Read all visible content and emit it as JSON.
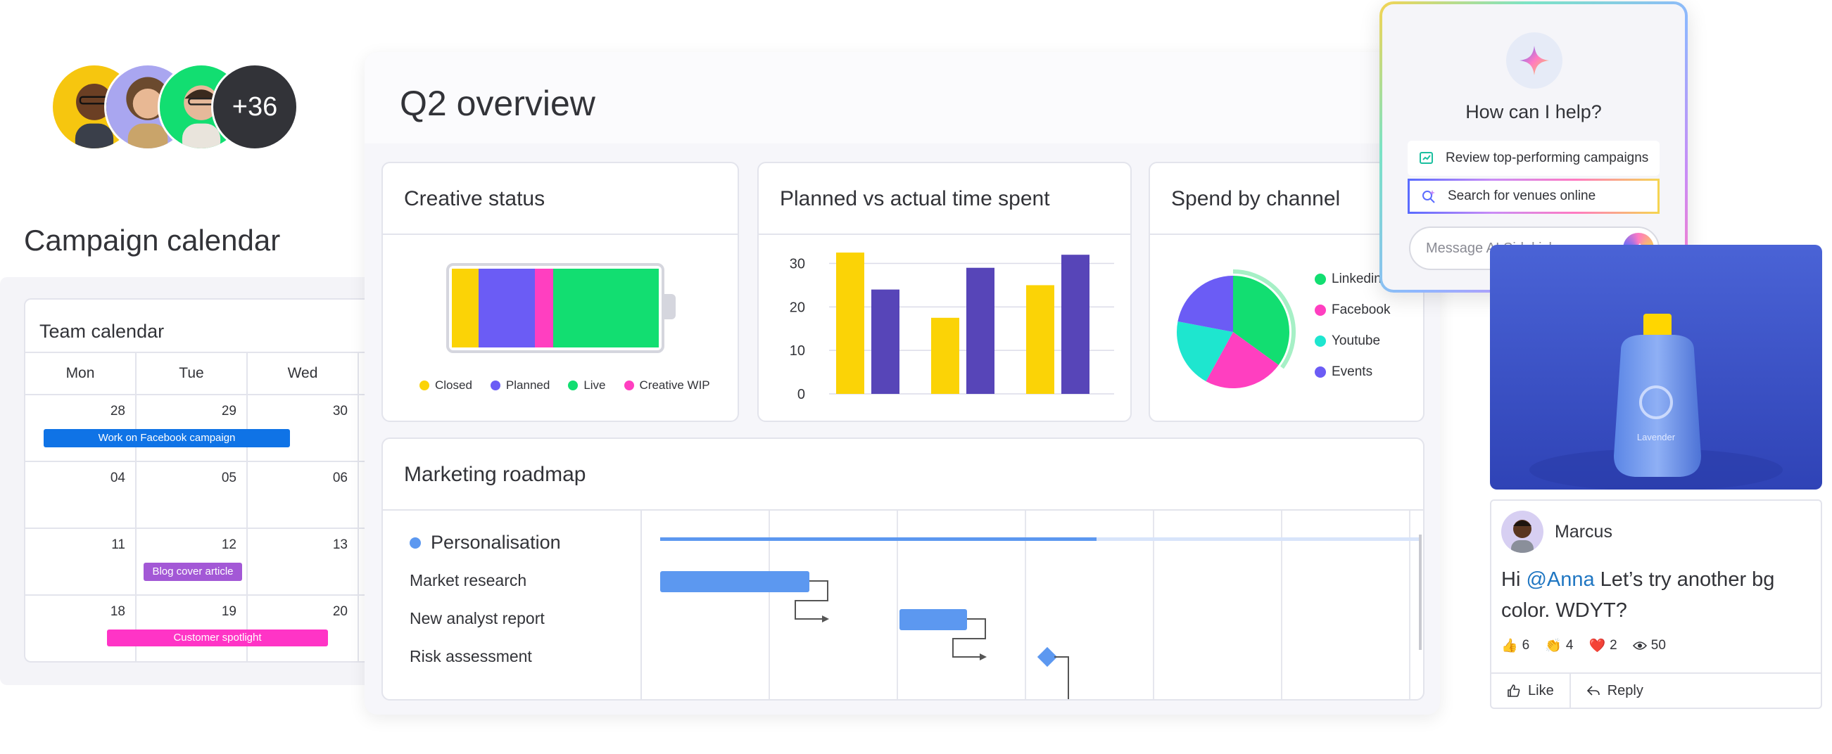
{
  "avatars": {
    "more_count": "+36"
  },
  "calendar": {
    "section_title": "Campaign calendar",
    "card_title": "Team calendar",
    "days": [
      "Mon",
      "Tue",
      "Wed"
    ],
    "weeks": [
      [
        "28",
        "29",
        "30"
      ],
      [
        "04",
        "05",
        "06"
      ],
      [
        "11",
        "12",
        "13"
      ],
      [
        "18",
        "19",
        "20"
      ]
    ],
    "events": [
      {
        "label": "Work on Facebook campaign",
        "color": "#0f73e6"
      },
      {
        "label": "Blog cover article",
        "color": "#a358d6"
      },
      {
        "label": "Customer spotlight",
        "color": "#ff34c6"
      }
    ]
  },
  "dashboard": {
    "title": "Q2 overview",
    "creative_status": {
      "title": "Creative status",
      "segments": [
        {
          "label": "Closed",
          "color": "#fbd306",
          "share": 0.13
        },
        {
          "label": "Planned",
          "color": "#6b5cf5",
          "share": 0.27
        },
        {
          "label": "Creative WIP",
          "color": "#ff3fc0",
          "share": 0.09
        },
        {
          "label": "Live",
          "color": "#12de71",
          "share": 0.51
        }
      ],
      "legend": [
        {
          "label": "Closed",
          "color": "#fbd306"
        },
        {
          "label": "Planned",
          "color": "#6b5cf5"
        },
        {
          "label": "Live",
          "color": "#12de71"
        },
        {
          "label": "Creative WIP",
          "color": "#ff3fc0"
        }
      ]
    },
    "time_spent": {
      "title": "Planned vs actual time spent"
    },
    "spend_by_channel": {
      "title": "Spend by channel",
      "legend": [
        {
          "label": "Linkedin",
          "color": "#12de71"
        },
        {
          "label": "Facebook",
          "color": "#ff3fc0"
        },
        {
          "label": "Youtube",
          "color": "#1ee6cf"
        },
        {
          "label": "Events",
          "color": "#6b5cf5"
        }
      ]
    },
    "roadmap": {
      "title": "Marketing roadmap",
      "group": "Personalisation",
      "group_color": "#5c98f0",
      "items": [
        "Market research",
        "New analyst report",
        "Risk assessment"
      ]
    }
  },
  "chart_data": [
    {
      "type": "bar",
      "title": "Planned vs actual time spent",
      "categories": [
        "",
        "",
        ""
      ],
      "series": [
        {
          "values": [
            32.5,
            17.5,
            25
          ],
          "color": "#fbd306"
        },
        {
          "values": [
            24,
            29,
            32
          ],
          "color": "#5745b8"
        }
      ],
      "ylim": [
        0,
        30
      ],
      "yticks": [
        "0",
        "10",
        "20",
        "30"
      ],
      "grid": true
    },
    {
      "type": "pie",
      "title": "Spend by channel",
      "labels": [
        "Linkedin",
        "Facebook",
        "Youtube",
        "Events"
      ],
      "values": [
        35,
        23,
        20,
        22
      ],
      "colors": [
        "#12de71",
        "#ff3fc0",
        "#1ee6cf",
        "#6b5cf5"
      ],
      "legend": "right"
    }
  ],
  "sidekick": {
    "title": "How can I help?",
    "suggestions": [
      "Review top-performing campaigns",
      "Search for venues online"
    ],
    "input_placeholder": "Message AI Sidekick..."
  },
  "product": {
    "brand": "Lavender"
  },
  "comment": {
    "author": "Marcus",
    "text_prefix": "Hi ",
    "mention": "@Anna",
    "text_suffix": " Let’s try another bg color. WDYT?",
    "reactions": [
      {
        "icon": "👍",
        "count": "6"
      },
      {
        "icon": "👏",
        "count": "4"
      },
      {
        "icon": "❤️",
        "count": "2"
      }
    ],
    "views": "50",
    "like_label": "Like",
    "reply_label": "Reply"
  }
}
